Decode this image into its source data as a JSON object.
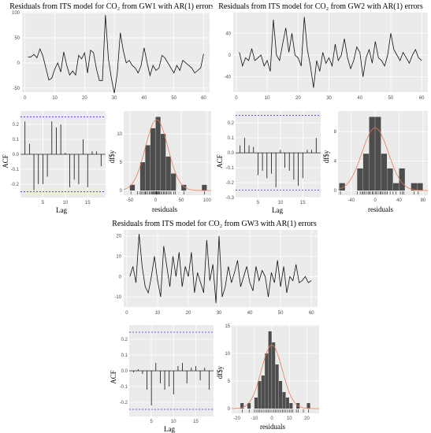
{
  "chart_data": [
    {
      "id": "gw1-ts",
      "type": "line",
      "title": "Residuals from ITS model for CO₂ from GW1 with AR(1) errors",
      "xlabel": "",
      "ylabel": "",
      "xlim": [
        -1,
        62
      ],
      "ylim": [
        -58,
        100
      ],
      "xticks": [
        "0",
        "10",
        "20",
        "30",
        "40",
        "50",
        "60"
      ],
      "yticks": [
        "100",
        "50",
        "0",
        "-50"
      ],
      "grid": true,
      "x": [
        1,
        2,
        3,
        4,
        5,
        6,
        7,
        8,
        9,
        10,
        11,
        12,
        13,
        14,
        15,
        16,
        17,
        18,
        19,
        20,
        21,
        22,
        23,
        24,
        25,
        26,
        27,
        28,
        29,
        30,
        31,
        32,
        33,
        34,
        35,
        36,
        37,
        38,
        39,
        40,
        41,
        42,
        43,
        44,
        45,
        46,
        47,
        48,
        49,
        50,
        51,
        52,
        53,
        54,
        55,
        56,
        57,
        58,
        59,
        60
      ],
      "values": [
        12,
        12,
        17,
        10,
        28,
        14,
        -10,
        -34,
        -30,
        -12,
        0,
        -18,
        22,
        -5,
        -24,
        -16,
        -24,
        15,
        8,
        20,
        -20,
        25,
        20,
        -12,
        -35,
        -35,
        95,
        8,
        -30,
        -60,
        -20,
        60,
        25,
        0,
        5,
        -5,
        -10,
        -20,
        -5,
        30,
        0,
        -25,
        -5,
        -15,
        -10,
        15,
        10,
        0,
        -10,
        -20,
        -5,
        -15,
        5,
        0,
        -5,
        -10,
        -20,
        -15,
        -10,
        18
      ]
    },
    {
      "id": "gw2-ts",
      "type": "line",
      "title": "Residuals from ITS model for CO₂ from GW2 with AR(1) errors",
      "xlabel": "",
      "ylabel": "",
      "xlim": [
        -1,
        62
      ],
      "ylim": [
        -68,
        78
      ],
      "xticks": [
        "0",
        "10",
        "20",
        "30",
        "40",
        "50",
        "60"
      ],
      "yticks": [
        "40",
        "0",
        "-40"
      ],
      "grid": true,
      "x": [
        1,
        2,
        3,
        4,
        5,
        6,
        7,
        8,
        9,
        10,
        11,
        12,
        13,
        14,
        15,
        16,
        17,
        18,
        19,
        20,
        21,
        22,
        23,
        24,
        25,
        26,
        27,
        28,
        29,
        30,
        31,
        32,
        33,
        34,
        35,
        36,
        37,
        38,
        39,
        40,
        41,
        42,
        43,
        44,
        45,
        46,
        47,
        48,
        49,
        50,
        51,
        52,
        53,
        54,
        55,
        56,
        57,
        58,
        59,
        60
      ],
      "values": [
        5,
        -20,
        -5,
        -10,
        12,
        -10,
        -5,
        0,
        -20,
        -10,
        -30,
        65,
        0,
        -10,
        20,
        50,
        5,
        40,
        0,
        -5,
        -20,
        70,
        10,
        -20,
        -60,
        -10,
        -30,
        5,
        -15,
        -5,
        -20,
        20,
        -10,
        0,
        30,
        -5,
        -25,
        -10,
        15,
        5,
        -40,
        -5,
        10,
        -15,
        25,
        -5,
        -10,
        -20,
        0,
        40,
        10,
        0,
        -10,
        5,
        -5,
        -15,
        0,
        10,
        -5,
        -10
      ]
    },
    {
      "id": "gw1-acf",
      "type": "bar",
      "xlabel": "Lag",
      "ylabel": "ACF",
      "xlim": [
        0,
        19
      ],
      "ylim": [
        -0.29,
        0.29
      ],
      "xticks": [
        "5",
        "10",
        "15"
      ],
      "yticks": [
        "0.2",
        "0.1",
        "0.0",
        "-0.1",
        "-0.2",
        "-0.3"
      ],
      "ci": 0.25,
      "categories": [
        "1",
        "2",
        "3",
        "4",
        "5",
        "6",
        "7",
        "8",
        "9",
        "10",
        "11",
        "12",
        "13",
        "14",
        "15",
        "16",
        "17",
        "18"
      ],
      "values": [
        0.22,
        0.07,
        -0.24,
        -0.2,
        -0.2,
        -0.15,
        0.22,
        0.18,
        0.2,
        0.01,
        -0.22,
        -0.17,
        -0.2,
        0.1,
        -0.22,
        0.02,
        0.02,
        -0.08
      ]
    },
    {
      "id": "gw1-hist",
      "type": "bar",
      "xlabel": "residuals",
      "ylabel": "df$y",
      "xlim": [
        -62,
        108
      ],
      "xticks": [
        "-50",
        "0",
        "50",
        "100"
      ],
      "bins": [
        {
          "x0": -50,
          "x1": -40,
          "count": 1
        },
        {
          "x0": -30,
          "x1": -20,
          "count": 5
        },
        {
          "x0": -20,
          "x1": -10,
          "count": 8
        },
        {
          "x0": -10,
          "x1": 0,
          "count": 11
        },
        {
          "x0": 0,
          "x1": 10,
          "count": 13
        },
        {
          "x0": 10,
          "x1": 20,
          "count": 10
        },
        {
          "x0": 20,
          "x1": 30,
          "count": 6
        },
        {
          "x0": 30,
          "x1": 40,
          "count": 3
        },
        {
          "x0": 50,
          "x1": 60,
          "count": 1
        },
        {
          "x0": 90,
          "x1": 100,
          "count": 1
        }
      ],
      "density_curve": {
        "mean": 2,
        "sd": 22,
        "peak": 12.5
      },
      "rug": [
        -48,
        -35,
        -30,
        -28,
        -25,
        -22,
        -20,
        -18,
        -15,
        -12,
        -10,
        -8,
        -6,
        -5,
        -3,
        -2,
        0,
        1,
        2,
        3,
        5,
        6,
        8,
        10,
        12,
        15,
        17,
        20,
        22,
        25,
        28,
        30,
        35,
        38,
        55,
        95
      ]
    },
    {
      "id": "gw2-acf",
      "type": "bar",
      "xlabel": "Lag",
      "ylabel": "ACF",
      "xlim": [
        0,
        19
      ],
      "ylim": [
        -0.3,
        0.28
      ],
      "xticks": [
        "5",
        "10",
        "15"
      ],
      "yticks": [
        "0.2",
        "0.1",
        "0.0",
        "-0.1",
        "-0.2",
        "-0.3"
      ],
      "ci": 0.25,
      "categories": [
        "1",
        "2",
        "3",
        "4",
        "5",
        "6",
        "7",
        "8",
        "9",
        "10",
        "11",
        "12",
        "13",
        "14",
        "15",
        "16",
        "17",
        "18"
      ],
      "values": [
        0.05,
        0.1,
        0.05,
        0.04,
        -0.15,
        -0.12,
        -0.17,
        -0.14,
        -0.23,
        0.02,
        -0.1,
        -0.12,
        -0.18,
        -0.22,
        -0.17,
        0.02,
        0.02,
        0.1
      ]
    },
    {
      "id": "gw2-hist",
      "type": "bar",
      "xlabel": "residuals",
      "ylabel": "df$y",
      "xlim": [
        -62,
        88
      ],
      "xticks": [
        "-40",
        "0",
        "40",
        "80"
      ],
      "bins": [
        {
          "x0": -60,
          "x1": -50,
          "count": 1
        },
        {
          "x0": -30,
          "x1": -20,
          "count": 3
        },
        {
          "x0": -20,
          "x1": -10,
          "count": 5
        },
        {
          "x0": -10,
          "x1": 0,
          "count": 10
        },
        {
          "x0": 0,
          "x1": 10,
          "count": 10
        },
        {
          "x0": 10,
          "x1": 20,
          "count": 5
        },
        {
          "x0": 20,
          "x1": 30,
          "count": 3
        },
        {
          "x0": 30,
          "x1": 40,
          "count": 1
        },
        {
          "x0": 40,
          "x1": 50,
          "count": 3
        },
        {
          "x0": 60,
          "x1": 70,
          "count": 1
        },
        {
          "x0": 70,
          "x1": 80,
          "count": 1
        }
      ],
      "density_curve": {
        "mean": 0,
        "sd": 22,
        "peak": 8.5
      },
      "rug": [
        -58,
        -30,
        -25,
        -22,
        -20,
        -18,
        -15,
        -12,
        -10,
        -8,
        -5,
        -3,
        0,
        2,
        5,
        8,
        10,
        12,
        15,
        18,
        20,
        25,
        30,
        35,
        42,
        45,
        48,
        65,
        72
      ]
    },
    {
      "id": "gw3-ts",
      "type": "line",
      "title": "Residuals from ITS model for CO₂ from GW3 with AR(1) errors",
      "xlabel": "",
      "ylabel": "",
      "xlim": [
        -1,
        62
      ],
      "ylim": [
        -15,
        23
      ],
      "xticks": [
        "0",
        "10",
        "20",
        "30",
        "40",
        "50",
        "60"
      ],
      "yticks": [
        "20",
        "10",
        "0",
        "-10"
      ],
      "grid": true,
      "x": [
        1,
        2,
        3,
        4,
        5,
        6,
        7,
        8,
        9,
        10,
        11,
        12,
        13,
        14,
        15,
        16,
        17,
        18,
        19,
        20,
        21,
        22,
        23,
        24,
        25,
        26,
        27,
        28,
        29,
        30,
        31,
        32,
        33,
        34,
        35,
        36,
        37,
        38,
        39,
        40,
        41,
        42,
        43,
        44,
        45,
        46,
        47,
        48,
        49,
        50,
        51,
        52,
        53,
        54,
        55,
        56,
        57,
        58,
        59,
        60
      ],
      "values": [
        0,
        5,
        -3,
        21,
        5,
        -5,
        -8,
        0,
        10,
        -2,
        -10,
        15,
        5,
        -5,
        10,
        0,
        12,
        -5,
        5,
        0,
        12,
        -8,
        2,
        -3,
        -8,
        18,
        -2,
        6,
        -13,
        20,
        -10,
        -5,
        5,
        -3,
        2,
        8,
        -5,
        0,
        5,
        -3,
        -7,
        5,
        -2,
        3,
        0,
        -10,
        2,
        -3,
        8,
        -5,
        5,
        -8,
        0,
        -2,
        6,
        -3,
        -2,
        0,
        -3,
        -2
      ]
    },
    {
      "id": "gw3-acf",
      "type": "bar",
      "xlabel": "Lag",
      "ylabel": "ACF",
      "xlim": [
        0,
        19
      ],
      "ylim": [
        -0.29,
        0.29
      ],
      "xticks": [
        "5",
        "10",
        "15"
      ],
      "yticks": [
        "0.2",
        "0.1",
        "0.0",
        "-0.1",
        "-0.2"
      ],
      "ci": 0.245,
      "categories": [
        "1",
        "2",
        "3",
        "4",
        "5",
        "6",
        "7",
        "8",
        "9",
        "10",
        "11",
        "12",
        "13",
        "14",
        "15",
        "16",
        "17",
        "18"
      ],
      "values": [
        -0.01,
        0.01,
        -0.02,
        -0.12,
        -0.22,
        0.05,
        -0.08,
        -0.12,
        -0.1,
        -0.15,
        0.03,
        0.05,
        -0.08,
        0.02,
        0.03,
        -0.06,
        0.02,
        -0.12
      ]
    },
    {
      "id": "gw3-hist",
      "type": "bar",
      "xlabel": "residuals",
      "ylabel": "df$y",
      "xlim": [
        -23,
        27
      ],
      "xticks": [
        "-20",
        "-10",
        "0",
        "10",
        "20"
      ],
      "bins": [
        {
          "x0": -18,
          "x1": -16,
          "count": 1
        },
        {
          "x0": -14,
          "x1": -12,
          "count": 1
        },
        {
          "x0": -10,
          "x1": -8,
          "count": 2
        },
        {
          "x0": -8,
          "x1": -6,
          "count": 5
        },
        {
          "x0": -6,
          "x1": -4,
          "count": 6
        },
        {
          "x0": -4,
          "x1": -2,
          "count": 10
        },
        {
          "x0": -2,
          "x1": 0,
          "count": 14
        },
        {
          "x0": 0,
          "x1": 2,
          "count": 12
        },
        {
          "x0": 2,
          "x1": 4,
          "count": 8
        },
        {
          "x0": 4,
          "x1": 6,
          "count": 5
        },
        {
          "x0": 6,
          "x1": 8,
          "count": 3
        },
        {
          "x0": 8,
          "x1": 10,
          "count": 2
        },
        {
          "x0": 10,
          "x1": 12,
          "count": 1
        },
        {
          "x0": 14,
          "x1": 16,
          "count": 1
        },
        {
          "x0": 20,
          "x1": 22,
          "count": 1
        }
      ],
      "density_curve": {
        "mean": 0,
        "sd": 6,
        "peak": 11.5
      },
      "rug": [
        -17,
        -13,
        -10,
        -9,
        -8,
        -7,
        -6,
        -5,
        -4,
        -3,
        -2,
        -1,
        0,
        1,
        2,
        3,
        4,
        5,
        6,
        7,
        8,
        9,
        10,
        11,
        12,
        14,
        15,
        18,
        21
      ]
    }
  ]
}
